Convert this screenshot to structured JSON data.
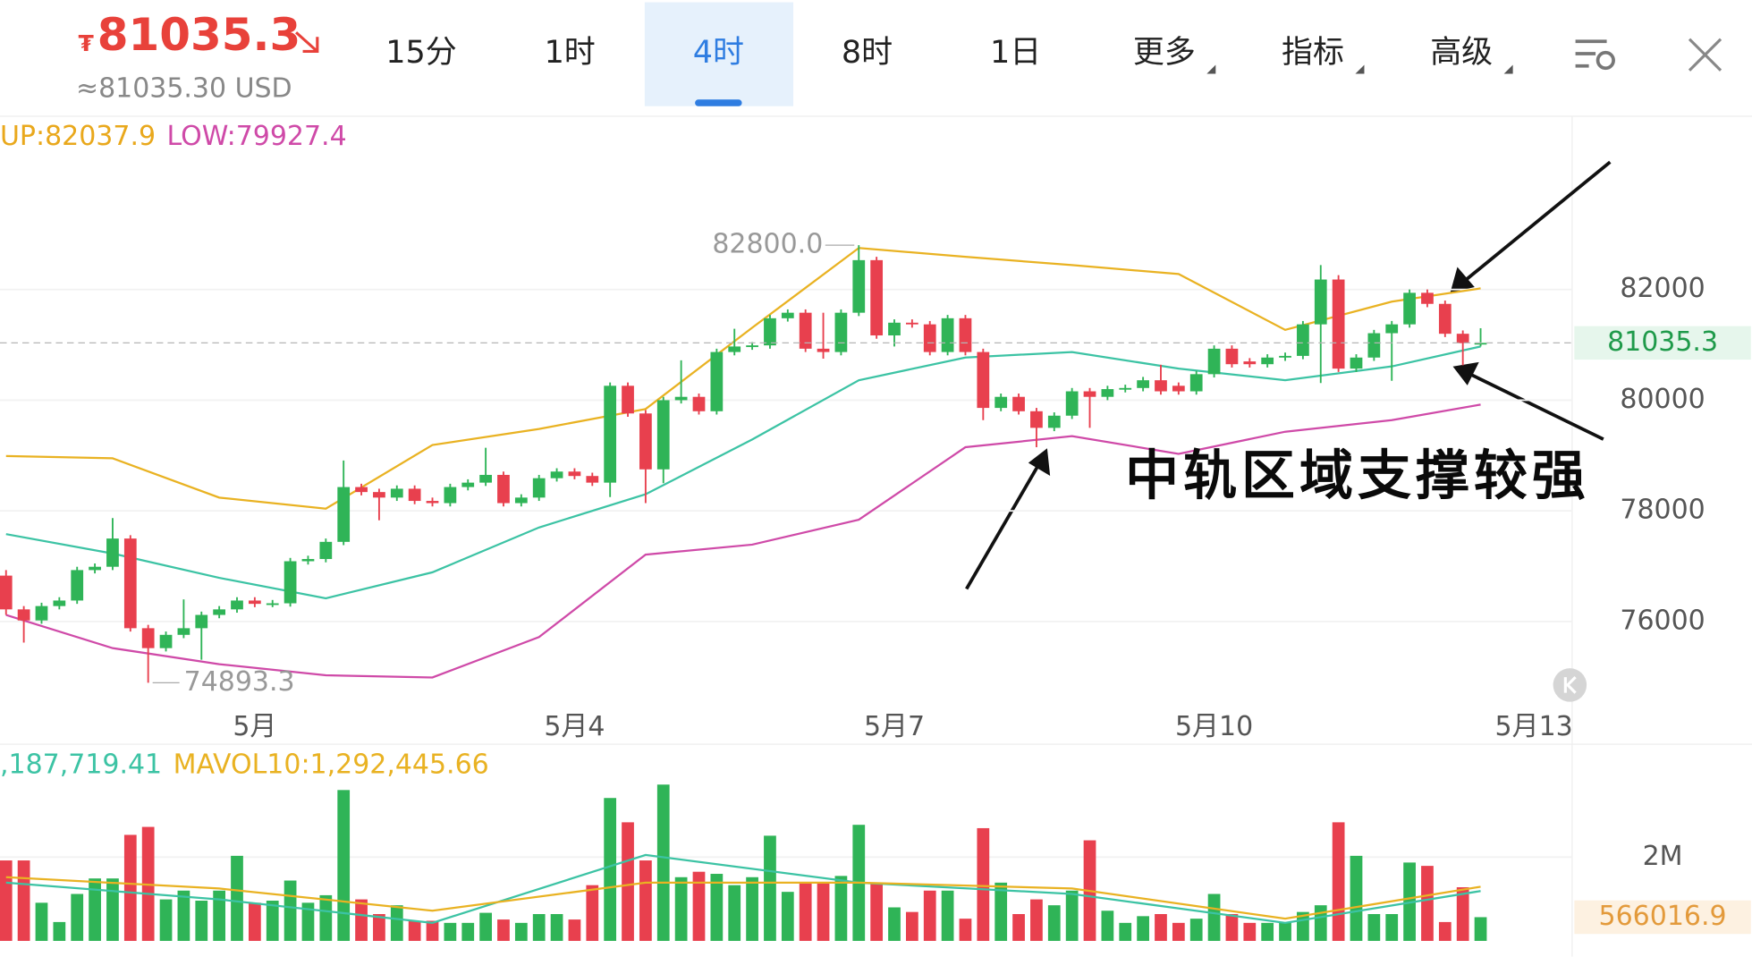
{
  "header": {
    "currency": "₮",
    "price": "81035.3",
    "approx": "≈81035.30 USD",
    "tabs": [
      {
        "label": "15分"
      },
      {
        "label": "1时"
      },
      {
        "label": "4时",
        "active": true
      },
      {
        "label": "8时"
      },
      {
        "label": "1日"
      },
      {
        "label": "更多",
        "menu": true
      },
      {
        "label": "指标",
        "menu": true
      },
      {
        "label": "高级",
        "menu": true
      }
    ]
  },
  "annotation": "中轨区域支撑较强",
  "chart_data": [
    {
      "type": "candlestick",
      "legend": [
        {
          "text": "UP:82037.9",
          "color": "#e9a81c"
        },
        {
          "text": "LOW:79927.4",
          "color": "#cf4aa8"
        }
      ],
      "up_color": "#2fb457",
      "down_color": "#e8404e",
      "xlim": [
        -0.34,
        88.15
      ],
      "ylim": [
        74450,
        85110
      ],
      "yticks": [
        76000,
        78000,
        80000,
        82000
      ],
      "grid": true,
      "xticks": [
        {
          "value": 14,
          "label": "5月"
        },
        {
          "value": 32,
          "label": "5月4"
        },
        {
          "value": 50,
          "label": "5月7"
        },
        {
          "value": 68,
          "label": "5月10"
        },
        {
          "value": 86,
          "label": "5月13"
        }
      ],
      "last": {
        "value": 81035.3,
        "label": "81035.3"
      },
      "high_label": "82800.0",
      "low_label": "74893.3",
      "candles": [
        [
          76830,
          76930,
          76120,
          76220
        ],
        [
          76220,
          76280,
          75620,
          76020
        ],
        [
          76020,
          76340,
          75960,
          76280
        ],
        [
          76280,
          76440,
          76220,
          76380
        ],
        [
          76380,
          76990,
          76320,
          76930
        ],
        [
          76930,
          77050,
          76870,
          76990
        ],
        [
          76990,
          77870,
          76930,
          77500
        ],
        [
          77500,
          77560,
          75820,
          75880
        ],
        [
          75880,
          75940,
          74893.3,
          75520
        ],
        [
          75520,
          75820,
          75460,
          75760
        ],
        [
          75760,
          76400,
          75700,
          75880
        ],
        [
          75880,
          76180,
          75310,
          76120
        ],
        [
          76120,
          76280,
          76060,
          76220
        ],
        [
          76220,
          76440,
          76160,
          76380
        ],
        [
          76380,
          76440,
          76260,
          76320
        ],
        [
          76320,
          76390,
          76260,
          76330
        ],
        [
          76330,
          77150,
          76270,
          77090
        ],
        [
          77090,
          77190,
          77030,
          77130
        ],
        [
          77130,
          77500,
          77070,
          77440
        ],
        [
          77440,
          78910,
          77380,
          78430
        ],
        [
          78430,
          78490,
          78280,
          78340
        ],
        [
          78340,
          78400,
          77830,
          78240
        ],
        [
          78240,
          78460,
          78180,
          78400
        ],
        [
          78400,
          78460,
          78120,
          78180
        ],
        [
          78180,
          78240,
          78080,
          78140
        ],
        [
          78140,
          78490,
          78080,
          78430
        ],
        [
          78430,
          78570,
          78370,
          78510
        ],
        [
          78510,
          79140,
          78450,
          78650
        ],
        [
          78650,
          78710,
          78080,
          78140
        ],
        [
          78140,
          78300,
          78080,
          78240
        ],
        [
          78240,
          78650,
          78180,
          78590
        ],
        [
          78590,
          78770,
          78530,
          78710
        ],
        [
          78710,
          78770,
          78570,
          78630
        ],
        [
          78630,
          78690,
          78450,
          78510
        ],
        [
          78510,
          80320,
          78250,
          80260
        ],
        [
          80260,
          80320,
          79700,
          79760
        ],
        [
          79760,
          79820,
          78140,
          78750
        ],
        [
          78750,
          80060,
          78500,
          80000
        ],
        [
          80000,
          80720,
          79940,
          80060
        ],
        [
          80060,
          80120,
          79740,
          79800
        ],
        [
          79800,
          80930,
          79740,
          80870
        ],
        [
          80870,
          81290,
          80810,
          80970
        ],
        [
          80970,
          81050,
          80910,
          80990
        ],
        [
          80990,
          81540,
          80930,
          81480
        ],
        [
          81480,
          81640,
          81420,
          81580
        ],
        [
          81580,
          81640,
          80870,
          80930
        ],
        [
          80930,
          81580,
          80750,
          80870
        ],
        [
          80870,
          81640,
          80810,
          81580
        ],
        [
          81580,
          82800,
          81520,
          82530
        ],
        [
          82530,
          82590,
          81110,
          81170
        ],
        [
          81170,
          81460,
          80970,
          81400
        ],
        [
          81400,
          81460,
          81310,
          81370
        ],
        [
          81370,
          81430,
          80810,
          80870
        ],
        [
          80870,
          81540,
          80810,
          81480
        ],
        [
          81480,
          81540,
          80810,
          80870
        ],
        [
          80870,
          80930,
          79640,
          79860
        ],
        [
          79860,
          80120,
          79800,
          80060
        ],
        [
          80060,
          80120,
          79740,
          79800
        ],
        [
          79800,
          79860,
          79150,
          79500
        ],
        [
          79500,
          79780,
          79440,
          79720
        ],
        [
          79720,
          80220,
          79660,
          80160
        ],
        [
          80160,
          80220,
          79500,
          80060
        ],
        [
          80060,
          80260,
          80000,
          80200
        ],
        [
          80200,
          80280,
          80140,
          80220
        ],
        [
          80220,
          80420,
          80160,
          80360
        ],
        [
          80360,
          80640,
          80100,
          80160
        ],
        [
          80260,
          80320,
          80100,
          80160
        ],
        [
          80160,
          80530,
          80100,
          80470
        ],
        [
          80470,
          80990,
          80410,
          80930
        ],
        [
          80930,
          80990,
          80590,
          80650
        ],
        [
          80700,
          80760,
          80590,
          80650
        ],
        [
          80650,
          80830,
          80590,
          80770
        ],
        [
          80770,
          80860,
          80710,
          80800
        ],
        [
          80800,
          81430,
          80740,
          81370
        ],
        [
          81370,
          82440,
          80310,
          82180
        ],
        [
          82180,
          82260,
          80510,
          80570
        ],
        [
          80570,
          80830,
          80510,
          80770
        ],
        [
          80770,
          81270,
          80710,
          81210
        ],
        [
          81210,
          81430,
          80350,
          81370
        ],
        [
          81370,
          82000,
          81310,
          81940
        ],
        [
          81940,
          82000,
          81680,
          81740
        ],
        [
          81740,
          81800,
          81140,
          81200
        ],
        [
          81200,
          81260,
          80630,
          81030
        ],
        [
          81030,
          81300,
          80970,
          81035.3
        ]
      ],
      "bands": [
        {
          "color": "#e9b222",
          "x": [
            0,
            6,
            12,
            18,
            24,
            30,
            36,
            42,
            48,
            54,
            60,
            66,
            72,
            78,
            83
          ],
          "values": [
            78990,
            78950,
            78240,
            78040,
            79190,
            79480,
            79840,
            81310,
            82750,
            82590,
            82440,
            82280,
            81270,
            81780,
            82020
          ]
        },
        {
          "color": "#3cc3a4",
          "x": [
            0,
            6,
            12,
            18,
            24,
            30,
            36,
            42,
            48,
            54,
            60,
            66,
            72,
            78,
            83
          ],
          "values": [
            77580,
            77230,
            76790,
            76420,
            76890,
            77700,
            78300,
            79290,
            80360,
            80770,
            80870,
            80570,
            80360,
            80610,
            80970
          ]
        },
        {
          "color": "#cf4aa8",
          "x": [
            0,
            6,
            12,
            18,
            24,
            30,
            36,
            42,
            48,
            54,
            60,
            66,
            72,
            78,
            83
          ],
          "values": [
            76120,
            75520,
            75230,
            75030,
            74990,
            75720,
            77210,
            77390,
            77840,
            79150,
            79350,
            79030,
            79430,
            79640,
            79920
          ]
        }
      ]
    },
    {
      "type": "bar",
      "legend": [
        {
          "text": ",187,719.41",
          "color": "#3cc3a4"
        },
        {
          "text": "MAVOL10:1,292,445.66",
          "color": "#e9b222"
        }
      ],
      "xlim": [
        -0.34,
        88.15
      ],
      "ylim": [
        0,
        4640000
      ],
      "yticks": [
        {
          "value": 2000000,
          "label": "2M"
        }
      ],
      "grid": true,
      "last": {
        "value": 566016.9,
        "label": "566016.9"
      },
      "values": [
        1920000,
        1920000,
        910000,
        450000,
        1120000,
        1490000,
        1490000,
        2530000,
        2720000,
        990000,
        1200000,
        960000,
        1200000,
        2030000,
        910000,
        960000,
        1440000,
        910000,
        1090000,
        3600000,
        990000,
        640000,
        850000,
        480000,
        480000,
        430000,
        430000,
        670000,
        510000,
        430000,
        640000,
        640000,
        510000,
        1330000,
        3410000,
        2830000,
        1920000,
        3730000,
        1520000,
        1650000,
        1600000,
        1330000,
        1520000,
        2510000,
        1170000,
        1390000,
        1390000,
        1550000,
        2770000,
        1390000,
        800000,
        690000,
        1200000,
        1200000,
        530000,
        2690000,
        1390000,
        640000,
        990000,
        850000,
        1200000,
        2400000,
        720000,
        430000,
        590000,
        640000,
        430000,
        530000,
        1120000,
        640000,
        430000,
        430000,
        430000,
        690000,
        850000,
        2830000,
        2030000,
        640000,
        640000,
        1870000,
        1790000,
        450000,
        1280000,
        566016.9
      ],
      "series": [
        {
          "color": "#3cc3a4",
          "x": [
            0,
            12,
            24,
            36,
            48,
            60,
            72,
            83
          ],
          "values": [
            1390000,
            990000,
            430000,
            2050000,
            1390000,
            1120000,
            430000,
            1190000
          ]
        },
        {
          "color": "#e9b222",
          "x": [
            0,
            12,
            24,
            36,
            48,
            60,
            72,
            83
          ],
          "values": [
            1520000,
            1250000,
            720000,
            1390000,
            1390000,
            1250000,
            530000,
            1292445.66
          ]
        }
      ]
    }
  ]
}
